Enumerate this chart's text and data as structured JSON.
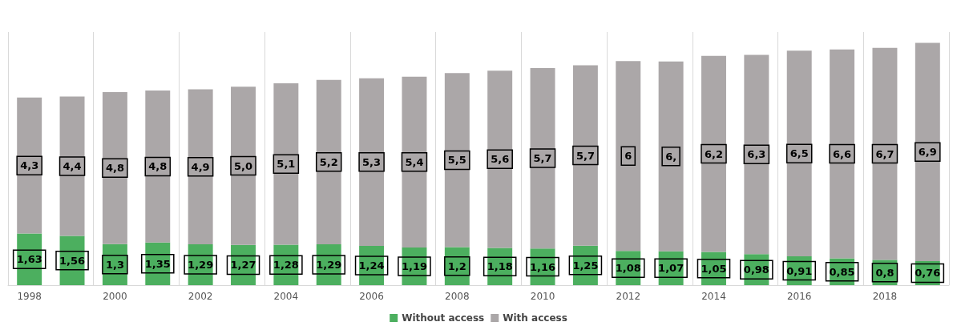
{
  "chart_data": {
    "type": "bar",
    "stacked": true,
    "grid": "x",
    "legend": "bottom",
    "categories": [
      "1998",
      null,
      "2000",
      null,
      "2002",
      null,
      "2004",
      null,
      "2006",
      null,
      "2008",
      null,
      "2010",
      null,
      "2012",
      null,
      "2014",
      null,
      "2016",
      null,
      "2018",
      null
    ],
    "series": [
      {
        "name": "Without access",
        "color": "#4caf5f",
        "values": [
          1.63,
          1.56,
          1.3,
          1.35,
          1.29,
          1.27,
          1.28,
          1.29,
          1.24,
          1.19,
          1.2,
          1.18,
          1.16,
          1.25,
          1.08,
          1.07,
          1.05,
          0.98,
          0.91,
          0.85,
          0.8,
          0.76
        ],
        "value_labels": [
          "1,63",
          "1,56",
          "1,3",
          "1,35",
          "1,29",
          "1,27",
          "1,28",
          "1,29",
          "1,24",
          "1,19",
          "1,2",
          "1,18",
          "1,16",
          "1,25",
          "1,08",
          "1,07",
          "1,05",
          "0,98",
          "0,91",
          "0,85",
          "0,8",
          "0,76"
        ]
      },
      {
        "name": "With access",
        "color": "#aba7a8",
        "values": [
          4.3,
          4.4,
          4.8,
          4.8,
          4.9,
          5.0,
          5.1,
          5.2,
          5.3,
          5.4,
          5.5,
          5.6,
          5.7,
          5.7,
          6,
          6,
          6.2,
          6.3,
          6.5,
          6.6,
          6.7,
          6.9
        ],
        "value_labels": [
          "4,3",
          "4,4",
          "4,8",
          "4,8",
          "4,9",
          "5,0",
          "5,1",
          "5,2",
          "5,3",
          "5,4",
          "5,5",
          "5,6",
          "5,7",
          "5,7",
          "6",
          "6,",
          "6,2",
          "6,3",
          "6,5",
          "6,6",
          "6,7",
          "6,9"
        ]
      }
    ]
  }
}
